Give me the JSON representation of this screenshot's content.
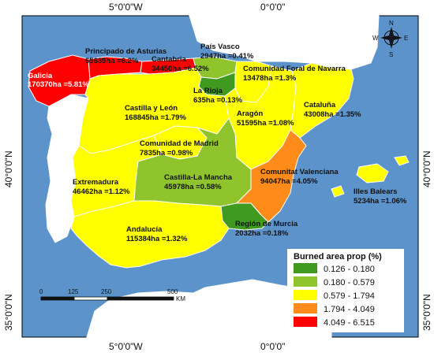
{
  "axes": {
    "top": [
      "5°0'0\"W",
      "0°0'0\""
    ],
    "bottom": [
      "5°0'0\"W",
      "0°0'0\""
    ],
    "left": [
      "40°0'0\"N",
      "35°0'0\"N"
    ],
    "right": [
      "40°0'0\"N",
      "35°0'0\"N"
    ]
  },
  "colors": {
    "sea": "#5b93ca",
    "land_outside": "#ffffff",
    "border": "#ffffff",
    "class1": "#3f9a1f",
    "class2": "#8fc42d",
    "class3": "#ffff00",
    "class4": "#ff8c1a",
    "class5": "#ff0000"
  },
  "regions": [
    {
      "name": "Galicia",
      "value": "170370ha =5.81%",
      "class": "class5"
    },
    {
      "name": "Principado de Asturias",
      "value": "65639ha =6.2%",
      "class": "class5"
    },
    {
      "name": "Cantabria",
      "value": "34450ha =6.52%",
      "class": "class5"
    },
    {
      "name": "País Vasco",
      "value": "2947ha =0.41%",
      "class": "class2"
    },
    {
      "name": "Comunidad Foral de Navarra",
      "value": "13478ha =1.3%",
      "class": "class3"
    },
    {
      "name": "La Rioja",
      "value": "635ha =0.13%",
      "class": "class1"
    },
    {
      "name": "Castilla y León",
      "value": "168845ha =1.79%",
      "class": "class3"
    },
    {
      "name": "Aragón",
      "value": "51595ha =1.08%",
      "class": "class3"
    },
    {
      "name": "Cataluña",
      "value": "43008ha =1.35%",
      "class": "class3"
    },
    {
      "name": "Comunidad de Madrid",
      "value": "7835ha =0.98%",
      "class": "class3"
    },
    {
      "name": "Extremadura",
      "value": "46462ha =1.12%",
      "class": "class3"
    },
    {
      "name": "Castilla-La Mancha",
      "value": "45978ha =0.58%",
      "class": "class2"
    },
    {
      "name": "Comunitat Valenciana",
      "value": "94047ha =4.05%",
      "class": "class4"
    },
    {
      "name": "Illes Balears",
      "value": "5234ha =1.06%",
      "class": "class3"
    },
    {
      "name": "Andalucía",
      "value": "115384ha =1.32%",
      "class": "class3"
    },
    {
      "name": "Región de Murcia",
      "value": "2032ha =0.18%",
      "class": "class1"
    }
  ],
  "legend": {
    "title": "Burned area prop (%)",
    "items": [
      {
        "label": "0.126 - 0.180",
        "class": "class1"
      },
      {
        "label": "0.180 - 0.579",
        "class": "class2"
      },
      {
        "label": "0.579 - 1.794",
        "class": "class3"
      },
      {
        "label": "1.794 - 4.049",
        "class": "class4"
      },
      {
        "label": "4.049 - 6.515",
        "class": "class5"
      }
    ]
  },
  "scale_bar": {
    "ticks": [
      "0",
      "125",
      "250",
      "500"
    ],
    "unit": "KM"
  },
  "compass": {
    "n": "N",
    "s": "S",
    "e": "E",
    "w": "W"
  }
}
